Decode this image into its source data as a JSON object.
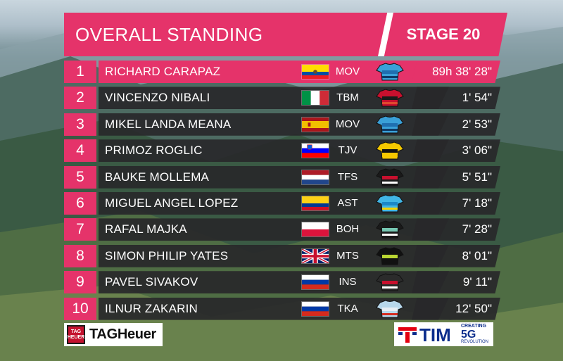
{
  "header": {
    "title": "OVERALL STANDING",
    "stage": "STAGE 20"
  },
  "colors": {
    "accent": "#e5336a",
    "row_bg": "#28282a"
  },
  "standings": [
    {
      "rank": "1",
      "name": "RICHARD CARAPAZ",
      "flag": "ecuador",
      "team": "MOV",
      "jersey": "movistar-jersey-icon",
      "time": "89h 38' 28\""
    },
    {
      "rank": "2",
      "name": "VINCENZO NIBALI",
      "flag": "italy",
      "team": "TBM",
      "jersey": "bahrain-merida-jersey-icon",
      "time": "1' 54\""
    },
    {
      "rank": "3",
      "name": "MIKEL LANDA MEANA",
      "flag": "spain",
      "team": "MOV",
      "jersey": "movistar-jersey-icon",
      "time": "2' 53\""
    },
    {
      "rank": "4",
      "name": "PRIMOZ ROGLIC",
      "flag": "slovenia",
      "team": "TJV",
      "jersey": "jumbo-visma-jersey-icon",
      "time": "3' 06\""
    },
    {
      "rank": "5",
      "name": "BAUKE MOLLEMA",
      "flag": "netherlands",
      "team": "TFS",
      "jersey": "trek-segafredo-jersey-icon",
      "time": "5' 51\""
    },
    {
      "rank": "6",
      "name": "MIGUEL ANGEL LOPEZ",
      "flag": "colombia",
      "team": "AST",
      "jersey": "astana-jersey-icon",
      "time": "7' 18\""
    },
    {
      "rank": "7",
      "name": "RAFAL MAJKA",
      "flag": "poland",
      "team": "BOH",
      "jersey": "bora-hansgrohe-jersey-icon",
      "time": "7' 28\""
    },
    {
      "rank": "8",
      "name": "SIMON PHILIP YATES",
      "flag": "uk",
      "team": "MTS",
      "jersey": "mitchelton-scott-jersey-icon",
      "time": "8' 01\""
    },
    {
      "rank": "9",
      "name": "PAVEL SIVAKOV",
      "flag": "russia",
      "team": "INS",
      "jersey": "ineos-jersey-icon",
      "time": "9' 11\""
    },
    {
      "rank": "10",
      "name": "ILNUR ZAKARIN",
      "flag": "russia",
      "team": "TKA",
      "jersey": "katusha-jersey-icon",
      "time": "12' 50\""
    }
  ],
  "sponsors": {
    "tag_shield": "TAG HEUER",
    "tag_text": "TAGHeuer",
    "tim_text": "TIM",
    "tim_creating": "CREATING",
    "tim_5g": "5G",
    "tim_revolution": "REVOLUTION"
  }
}
